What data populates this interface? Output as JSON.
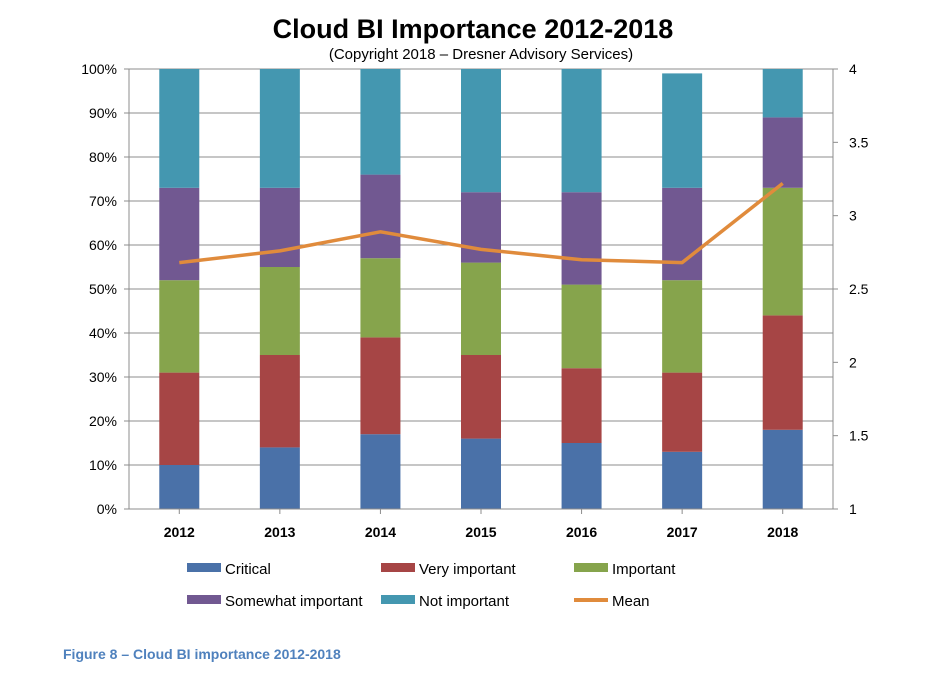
{
  "chart_data": {
    "type": "bar",
    "stacked": true,
    "title": "Cloud BI Importance 2012-2018",
    "subtitle": "(Copyright 2018 – Dresner Advisory Services)",
    "categories": [
      "2012",
      "2013",
      "2014",
      "2015",
      "2016",
      "2017",
      "2018"
    ],
    "series": [
      {
        "name": "Critical",
        "color": "#4a71a8",
        "values": [
          10,
          14,
          17,
          16,
          15,
          13,
          18
        ]
      },
      {
        "name": "Very important",
        "color": "#a64545",
        "values": [
          21,
          21,
          22,
          19,
          17,
          18,
          26
        ]
      },
      {
        "name": "Important",
        "color": "#86a44c",
        "values": [
          21,
          20,
          18,
          21,
          19,
          21,
          29
        ]
      },
      {
        "name": "Somewhat important",
        "color": "#715891",
        "values": [
          21,
          18,
          19,
          16,
          21,
          21,
          16
        ]
      },
      {
        "name": "Not important",
        "color": "#4497b0",
        "values": [
          27,
          27,
          24,
          28,
          28,
          26,
          11
        ]
      }
    ],
    "line_series": {
      "name": "Mean",
      "color": "#e08b3c",
      "axis": "right",
      "values": [
        2.68,
        2.76,
        2.89,
        2.77,
        2.7,
        2.68,
        3.22
      ]
    },
    "ylim": [
      0,
      100
    ],
    "yticks": [
      "0%",
      "10%",
      "20%",
      "30%",
      "40%",
      "50%",
      "60%",
      "70%",
      "80%",
      "90%",
      "100%"
    ],
    "y2lim": [
      1,
      4
    ],
    "y2ticks": [
      "1",
      "1.5",
      "2",
      "2.5",
      "3",
      "3.5",
      "4"
    ],
    "grid": true,
    "legend_position": "bottom"
  },
  "caption": "Figure 8 – Cloud BI importance 2012-2018"
}
